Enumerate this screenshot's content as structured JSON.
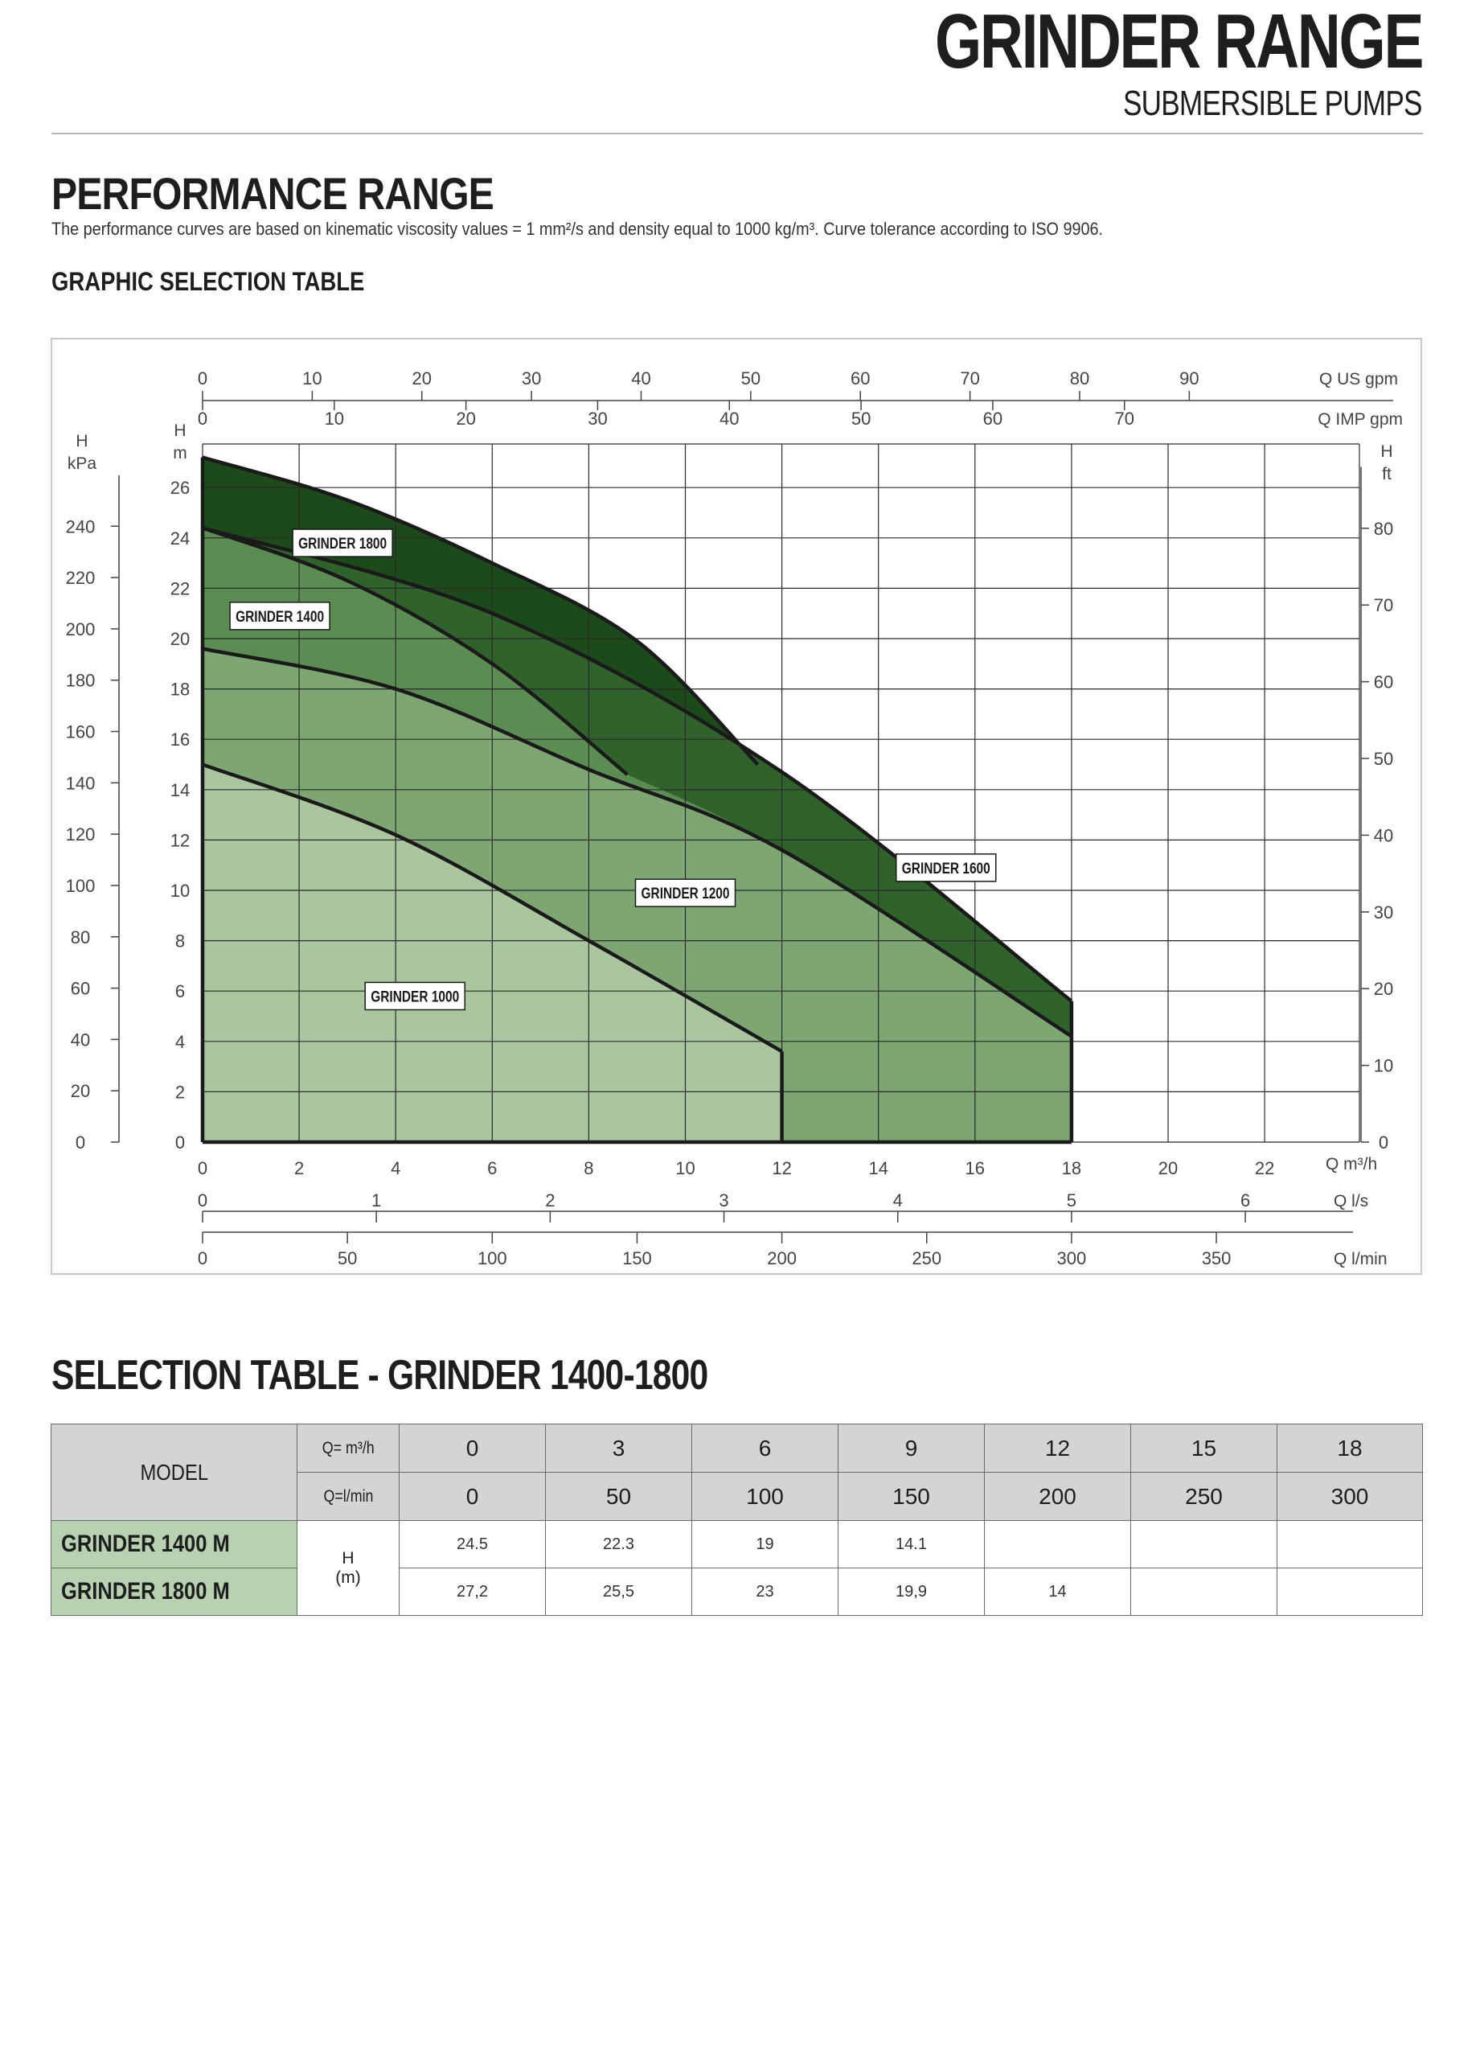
{
  "header": {
    "title": "GRINDER RANGE",
    "subtitle": "SUBMERSIBLE PUMPS"
  },
  "performance": {
    "title": "PERFORMANCE RANGE",
    "description": "The performance curves are based on kinematic viscosity values = 1 mm²/s and density equal to 1000 kg/m³. Curve tolerance according to ISO 9906.",
    "graphic_title": "GRAPHIC SELECTION TABLE"
  },
  "chart_data": {
    "type": "area",
    "x_axis_main": {
      "label": "Q m³/h",
      "range": [
        0,
        24
      ],
      "ticks": [
        0,
        2,
        4,
        6,
        8,
        10,
        12,
        14,
        16,
        18,
        20,
        22
      ]
    },
    "x_axis_ls": {
      "label": "Q l/s",
      "ticks": [
        0,
        1,
        2,
        3,
        4,
        5,
        6
      ]
    },
    "x_axis_lmin": {
      "label": "Q l/min",
      "ticks": [
        0,
        50,
        100,
        150,
        200,
        250,
        300,
        350
      ]
    },
    "x_axis_us_gpm": {
      "label": "Q US gpm",
      "ticks": [
        0,
        10,
        20,
        30,
        40,
        50,
        60,
        70,
        80,
        90
      ]
    },
    "x_axis_imp_gpm": {
      "label": "Q IMP gpm",
      "ticks": [
        0,
        10,
        20,
        30,
        40,
        50,
        60,
        70
      ]
    },
    "y_axis_m": {
      "label_top": "H",
      "label_bottom": "m",
      "range": [
        0,
        27
      ],
      "ticks": [
        0,
        2,
        4,
        6,
        8,
        10,
        12,
        14,
        16,
        18,
        20,
        22,
        24,
        26
      ]
    },
    "y_axis_kpa": {
      "label_top": "H",
      "label_bottom": "kPa",
      "ticks": [
        0,
        20,
        40,
        60,
        80,
        100,
        120,
        140,
        160,
        180,
        200,
        220,
        240
      ]
    },
    "y_axis_ft": {
      "label_top": "H",
      "label_bottom": "ft",
      "ticks": [
        0,
        10,
        20,
        30,
        40,
        50,
        60,
        70,
        80
      ]
    },
    "grid": true,
    "series": [
      {
        "name": "GRINDER 1000",
        "color": "#a9c69f",
        "points": [
          [
            0,
            15
          ],
          [
            4,
            12.2
          ],
          [
            8,
            8
          ],
          [
            12,
            3.6
          ]
        ],
        "q_max": 12
      },
      {
        "name": "GRINDER 1200",
        "color": "#7ea672",
        "points": [
          [
            0,
            19.6
          ],
          [
            4,
            18
          ],
          [
            8,
            14.8
          ],
          [
            12,
            11.6
          ],
          [
            18,
            4.2
          ]
        ],
        "q_max": 18
      },
      {
        "name": "GRINDER 1400",
        "color": "#5b8d53",
        "points": [
          [
            0,
            24.4
          ],
          [
            3,
            22.3
          ],
          [
            6,
            19
          ],
          [
            8.8,
            14.6
          ]
        ],
        "q_max": 8.8
      },
      {
        "name": "GRINDER 1600",
        "color": "#30622c",
        "points": [
          [
            0,
            24.4
          ],
          [
            6,
            21
          ],
          [
            12,
            14.7
          ],
          [
            18,
            5.6
          ]
        ],
        "q_max": 18
      },
      {
        "name": "GRINDER 1800",
        "color": "#1c4a1a",
        "points": [
          [
            0,
            27.2
          ],
          [
            3,
            25.5
          ],
          [
            6,
            23
          ],
          [
            9,
            19.9
          ],
          [
            11.5,
            15
          ]
        ],
        "q_max": 11.5
      }
    ]
  },
  "selection_table": {
    "title": "SELECTION TABLE - GRINDER 1400-1800",
    "model_header": "MODEL",
    "q_m3h_label": "Q= m³/h",
    "q_lmin_label": "Q=l/min",
    "q_m3h": [
      "0",
      "3",
      "6",
      "9",
      "12",
      "15",
      "18"
    ],
    "q_lmin": [
      "0",
      "50",
      "100",
      "150",
      "200",
      "250",
      "300"
    ],
    "h_label_top": "H",
    "h_label_bottom": "(m)",
    "rows": [
      {
        "model": "GRINDER 1400 M",
        "values": [
          "24.5",
          "22.3",
          "19",
          "14.1",
          "",
          "",
          ""
        ]
      },
      {
        "model": "GRINDER 1800 M",
        "values": [
          "27,2",
          "25,5",
          "23",
          "19,9",
          "14",
          "",
          ""
        ]
      }
    ]
  }
}
